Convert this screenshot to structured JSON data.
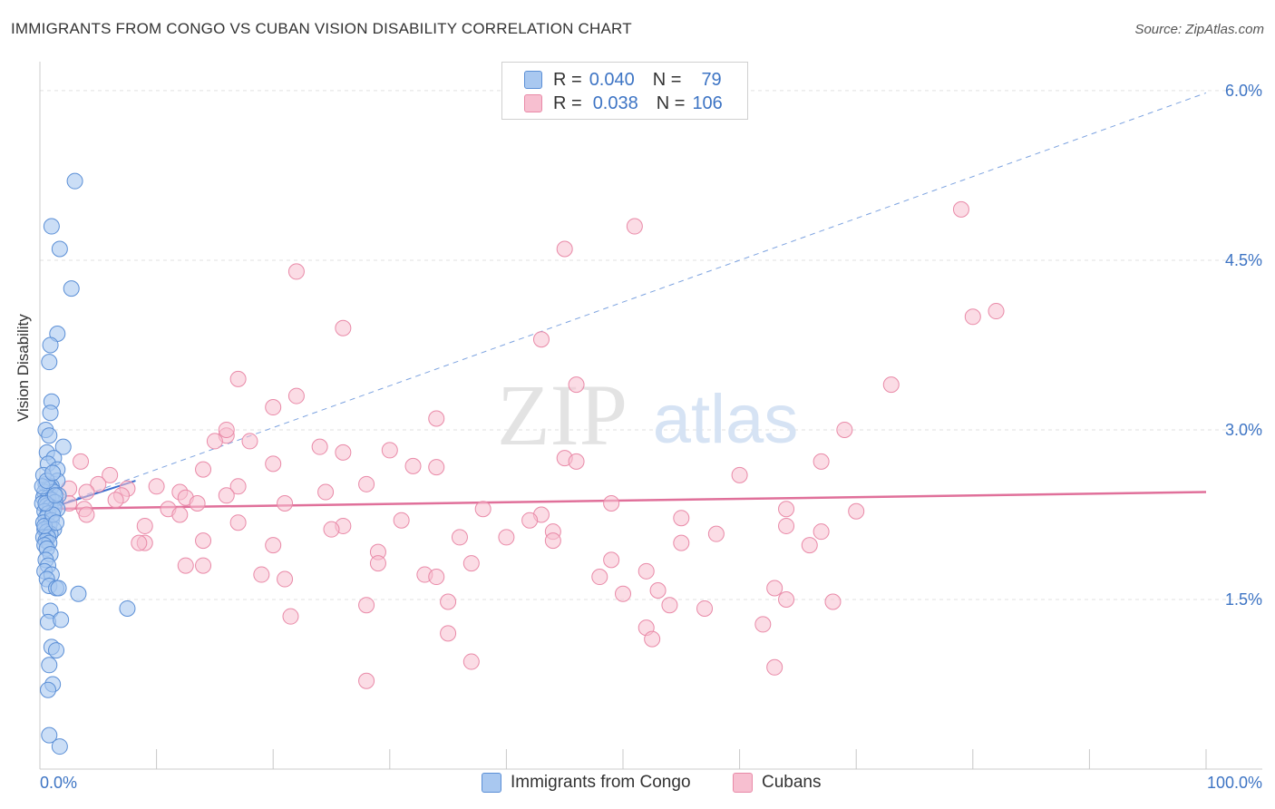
{
  "header": {
    "title": "IMMIGRANTS FROM CONGO VS CUBAN VISION DISABILITY CORRELATION CHART",
    "source": "Source: ZipAtlas.com"
  },
  "legend": {
    "rows": [
      {
        "r_label": "R =",
        "r_value": "0.040",
        "n_label": "N =",
        "n_value": "79",
        "color": "#a9c8f0",
        "stroke": "#5b8fd6"
      },
      {
        "r_label": "R =",
        "r_value": "0.038",
        "n_label": "N =",
        "n_value": "106",
        "color": "#f7bfd0",
        "stroke": "#e98aa8"
      }
    ]
  },
  "bottom_legend": [
    "Immigrants from Congo",
    "Cubans"
  ],
  "watermark": {
    "zip": "ZIP",
    "atlas": "atlas"
  },
  "colors": {
    "blue_fill": "#a9c8f0",
    "blue_stroke": "#5b8fd6",
    "blue_line": "#3b6fd0",
    "pink_fill": "#f7bfd0",
    "pink_stroke": "#e98aa8",
    "pink_line": "#e0709a",
    "grid": "#e2e2e2",
    "tick_text": "#3d74c4"
  },
  "chart_data": {
    "type": "scatter",
    "title": "IMMIGRANTS FROM CONGO VS CUBAN VISION DISABILITY CORRELATION CHART",
    "xlabel": "",
    "ylabel": "Vision Disability",
    "xlim": [
      0,
      100
    ],
    "ylim": [
      0,
      6.2
    ],
    "x_tick_labels": [
      "0.0%",
      "100.0%"
    ],
    "y_ticks": [
      1.5,
      3.0,
      4.5,
      6.0
    ],
    "y_tick_labels": [
      "1.5%",
      "3.0%",
      "4.5%",
      "6.0%"
    ],
    "grid": true,
    "series": [
      {
        "name": "Immigrants from Congo",
        "trend": {
          "type": "dashed-extension",
          "x": [
            0,
            100
          ],
          "y": [
            2.28,
            5.98
          ],
          "solid_x": [
            0,
            8.2
          ],
          "solid_y": [
            2.28,
            2.55
          ]
        },
        "points": [
          [
            3.0,
            5.2
          ],
          [
            1.0,
            4.8
          ],
          [
            1.7,
            4.6
          ],
          [
            2.7,
            4.25
          ],
          [
            1.5,
            3.85
          ],
          [
            0.9,
            3.75
          ],
          [
            0.8,
            3.6
          ],
          [
            1.0,
            3.25
          ],
          [
            0.9,
            3.15
          ],
          [
            0.5,
            3.0
          ],
          [
            0.8,
            2.95
          ],
          [
            2.0,
            2.85
          ],
          [
            0.6,
            2.8
          ],
          [
            1.2,
            2.75
          ],
          [
            0.7,
            2.7
          ],
          [
            1.5,
            2.65
          ],
          [
            1.5,
            2.55
          ],
          [
            0.5,
            2.52
          ],
          [
            0.8,
            2.5
          ],
          [
            1.0,
            2.5
          ],
          [
            0.9,
            2.48
          ],
          [
            0.4,
            2.45
          ],
          [
            1.2,
            2.45
          ],
          [
            1.6,
            2.42
          ],
          [
            0.3,
            2.4
          ],
          [
            0.7,
            2.4
          ],
          [
            1.0,
            2.38
          ],
          [
            1.3,
            2.36
          ],
          [
            0.2,
            2.35
          ],
          [
            0.6,
            2.33
          ],
          [
            0.9,
            2.32
          ],
          [
            1.2,
            2.3
          ],
          [
            0.4,
            2.28
          ],
          [
            0.7,
            2.26
          ],
          [
            1.5,
            2.3
          ],
          [
            0.5,
            2.22
          ],
          [
            1.0,
            2.2
          ],
          [
            0.3,
            2.18
          ],
          [
            0.8,
            2.15
          ],
          [
            0.4,
            2.12
          ],
          [
            1.2,
            2.12
          ],
          [
            0.6,
            2.1
          ],
          [
            0.9,
            2.08
          ],
          [
            0.3,
            2.05
          ],
          [
            0.7,
            2.05
          ],
          [
            0.5,
            2.02
          ],
          [
            0.8,
            2.0
          ],
          [
            0.4,
            1.98
          ],
          [
            0.6,
            1.95
          ],
          [
            0.9,
            1.9
          ],
          [
            0.5,
            1.85
          ],
          [
            0.7,
            1.8
          ],
          [
            0.4,
            1.75
          ],
          [
            1.0,
            1.72
          ],
          [
            0.6,
            1.68
          ],
          [
            0.8,
            1.62
          ],
          [
            1.4,
            1.6
          ],
          [
            1.6,
            1.6
          ],
          [
            3.3,
            1.55
          ],
          [
            0.9,
            1.4
          ],
          [
            7.5,
            1.42
          ],
          [
            0.7,
            1.3
          ],
          [
            1.8,
            1.32
          ],
          [
            1.0,
            1.08
          ],
          [
            1.4,
            1.05
          ],
          [
            0.8,
            0.92
          ],
          [
            1.1,
            0.75
          ],
          [
            0.7,
            0.7
          ],
          [
            0.8,
            0.3
          ],
          [
            1.7,
            0.2
          ],
          [
            0.3,
            2.6
          ],
          [
            0.4,
            2.15
          ],
          [
            1.1,
            2.25
          ],
          [
            0.2,
            2.5
          ],
          [
            1.4,
            2.18
          ],
          [
            0.6,
            2.55
          ],
          [
            1.1,
            2.62
          ],
          [
            0.5,
            2.35
          ],
          [
            1.3,
            2.42
          ]
        ]
      },
      {
        "name": "Cubans",
        "trend": {
          "type": "solid",
          "x": [
            0,
            100
          ],
          "y": [
            2.3,
            2.45
          ]
        },
        "points": [
          [
            79,
            4.95
          ],
          [
            51,
            4.8
          ],
          [
            45,
            4.6
          ],
          [
            22,
            4.4
          ],
          [
            80,
            4.0
          ],
          [
            82,
            4.05
          ],
          [
            26,
            3.9
          ],
          [
            43,
            3.8
          ],
          [
            17,
            3.45
          ],
          [
            46,
            3.4
          ],
          [
            73,
            3.4
          ],
          [
            22,
            3.3
          ],
          [
            20,
            3.2
          ],
          [
            34,
            3.1
          ],
          [
            69,
            3.0
          ],
          [
            16,
            2.95
          ],
          [
            15,
            2.9
          ],
          [
            18,
            2.9
          ],
          [
            24,
            2.85
          ],
          [
            30,
            2.82
          ],
          [
            26,
            2.8
          ],
          [
            45,
            2.75
          ],
          [
            3.5,
            2.72
          ],
          [
            46,
            2.72
          ],
          [
            67,
            2.72
          ],
          [
            20,
            2.7
          ],
          [
            32,
            2.68
          ],
          [
            34,
            2.67
          ],
          [
            14,
            2.65
          ],
          [
            6,
            2.6
          ],
          [
            60,
            2.6
          ],
          [
            5,
            2.52
          ],
          [
            28,
            2.52
          ],
          [
            17,
            2.5
          ],
          [
            10,
            2.5
          ],
          [
            7.5,
            2.48
          ],
          [
            2.5,
            2.48
          ],
          [
            4,
            2.45
          ],
          [
            12,
            2.45
          ],
          [
            16,
            2.42
          ],
          [
            7,
            2.42
          ],
          [
            12.5,
            2.4
          ],
          [
            6.5,
            2.38
          ],
          [
            2.5,
            2.35
          ],
          [
            13.5,
            2.35
          ],
          [
            21,
            2.35
          ],
          [
            3.8,
            2.3
          ],
          [
            11,
            2.3
          ],
          [
            64,
            2.3
          ],
          [
            70,
            2.28
          ],
          [
            43,
            2.25
          ],
          [
            4,
            2.25
          ],
          [
            42,
            2.2
          ],
          [
            55,
            2.22
          ],
          [
            17,
            2.18
          ],
          [
            26,
            2.15
          ],
          [
            9,
            2.15
          ],
          [
            25,
            2.12
          ],
          [
            64,
            2.15
          ],
          [
            44,
            2.1
          ],
          [
            67,
            2.1
          ],
          [
            58,
            2.08
          ],
          [
            36,
            2.05
          ],
          [
            40,
            2.05
          ],
          [
            44,
            2.02
          ],
          [
            14,
            2.02
          ],
          [
            9,
            2.0
          ],
          [
            20,
            1.98
          ],
          [
            66,
            1.98
          ],
          [
            8.5,
            2.0
          ],
          [
            29,
            1.92
          ],
          [
            12.5,
            1.8
          ],
          [
            14,
            1.8
          ],
          [
            29,
            1.82
          ],
          [
            37,
            1.82
          ],
          [
            49,
            1.85
          ],
          [
            33,
            1.72
          ],
          [
            19,
            1.72
          ],
          [
            34,
            1.7
          ],
          [
            52,
            1.75
          ],
          [
            21,
            1.68
          ],
          [
            63,
            1.6
          ],
          [
            53,
            1.58
          ],
          [
            50,
            1.55
          ],
          [
            64,
            1.5
          ],
          [
            35,
            1.48
          ],
          [
            28,
            1.45
          ],
          [
            68,
            1.48
          ],
          [
            54,
            1.45
          ],
          [
            57,
            1.42
          ],
          [
            21.5,
            1.35
          ],
          [
            62,
            1.28
          ],
          [
            52,
            1.25
          ],
          [
            35,
            1.2
          ],
          [
            52.5,
            1.15
          ],
          [
            37,
            0.95
          ],
          [
            63,
            0.9
          ],
          [
            28,
            0.78
          ],
          [
            16,
            3.0
          ],
          [
            24.5,
            2.45
          ],
          [
            38,
            2.3
          ],
          [
            49,
            2.35
          ],
          [
            55,
            2.0
          ],
          [
            31,
            2.2
          ],
          [
            48,
            1.7
          ],
          [
            12,
            2.25
          ]
        ]
      }
    ]
  }
}
